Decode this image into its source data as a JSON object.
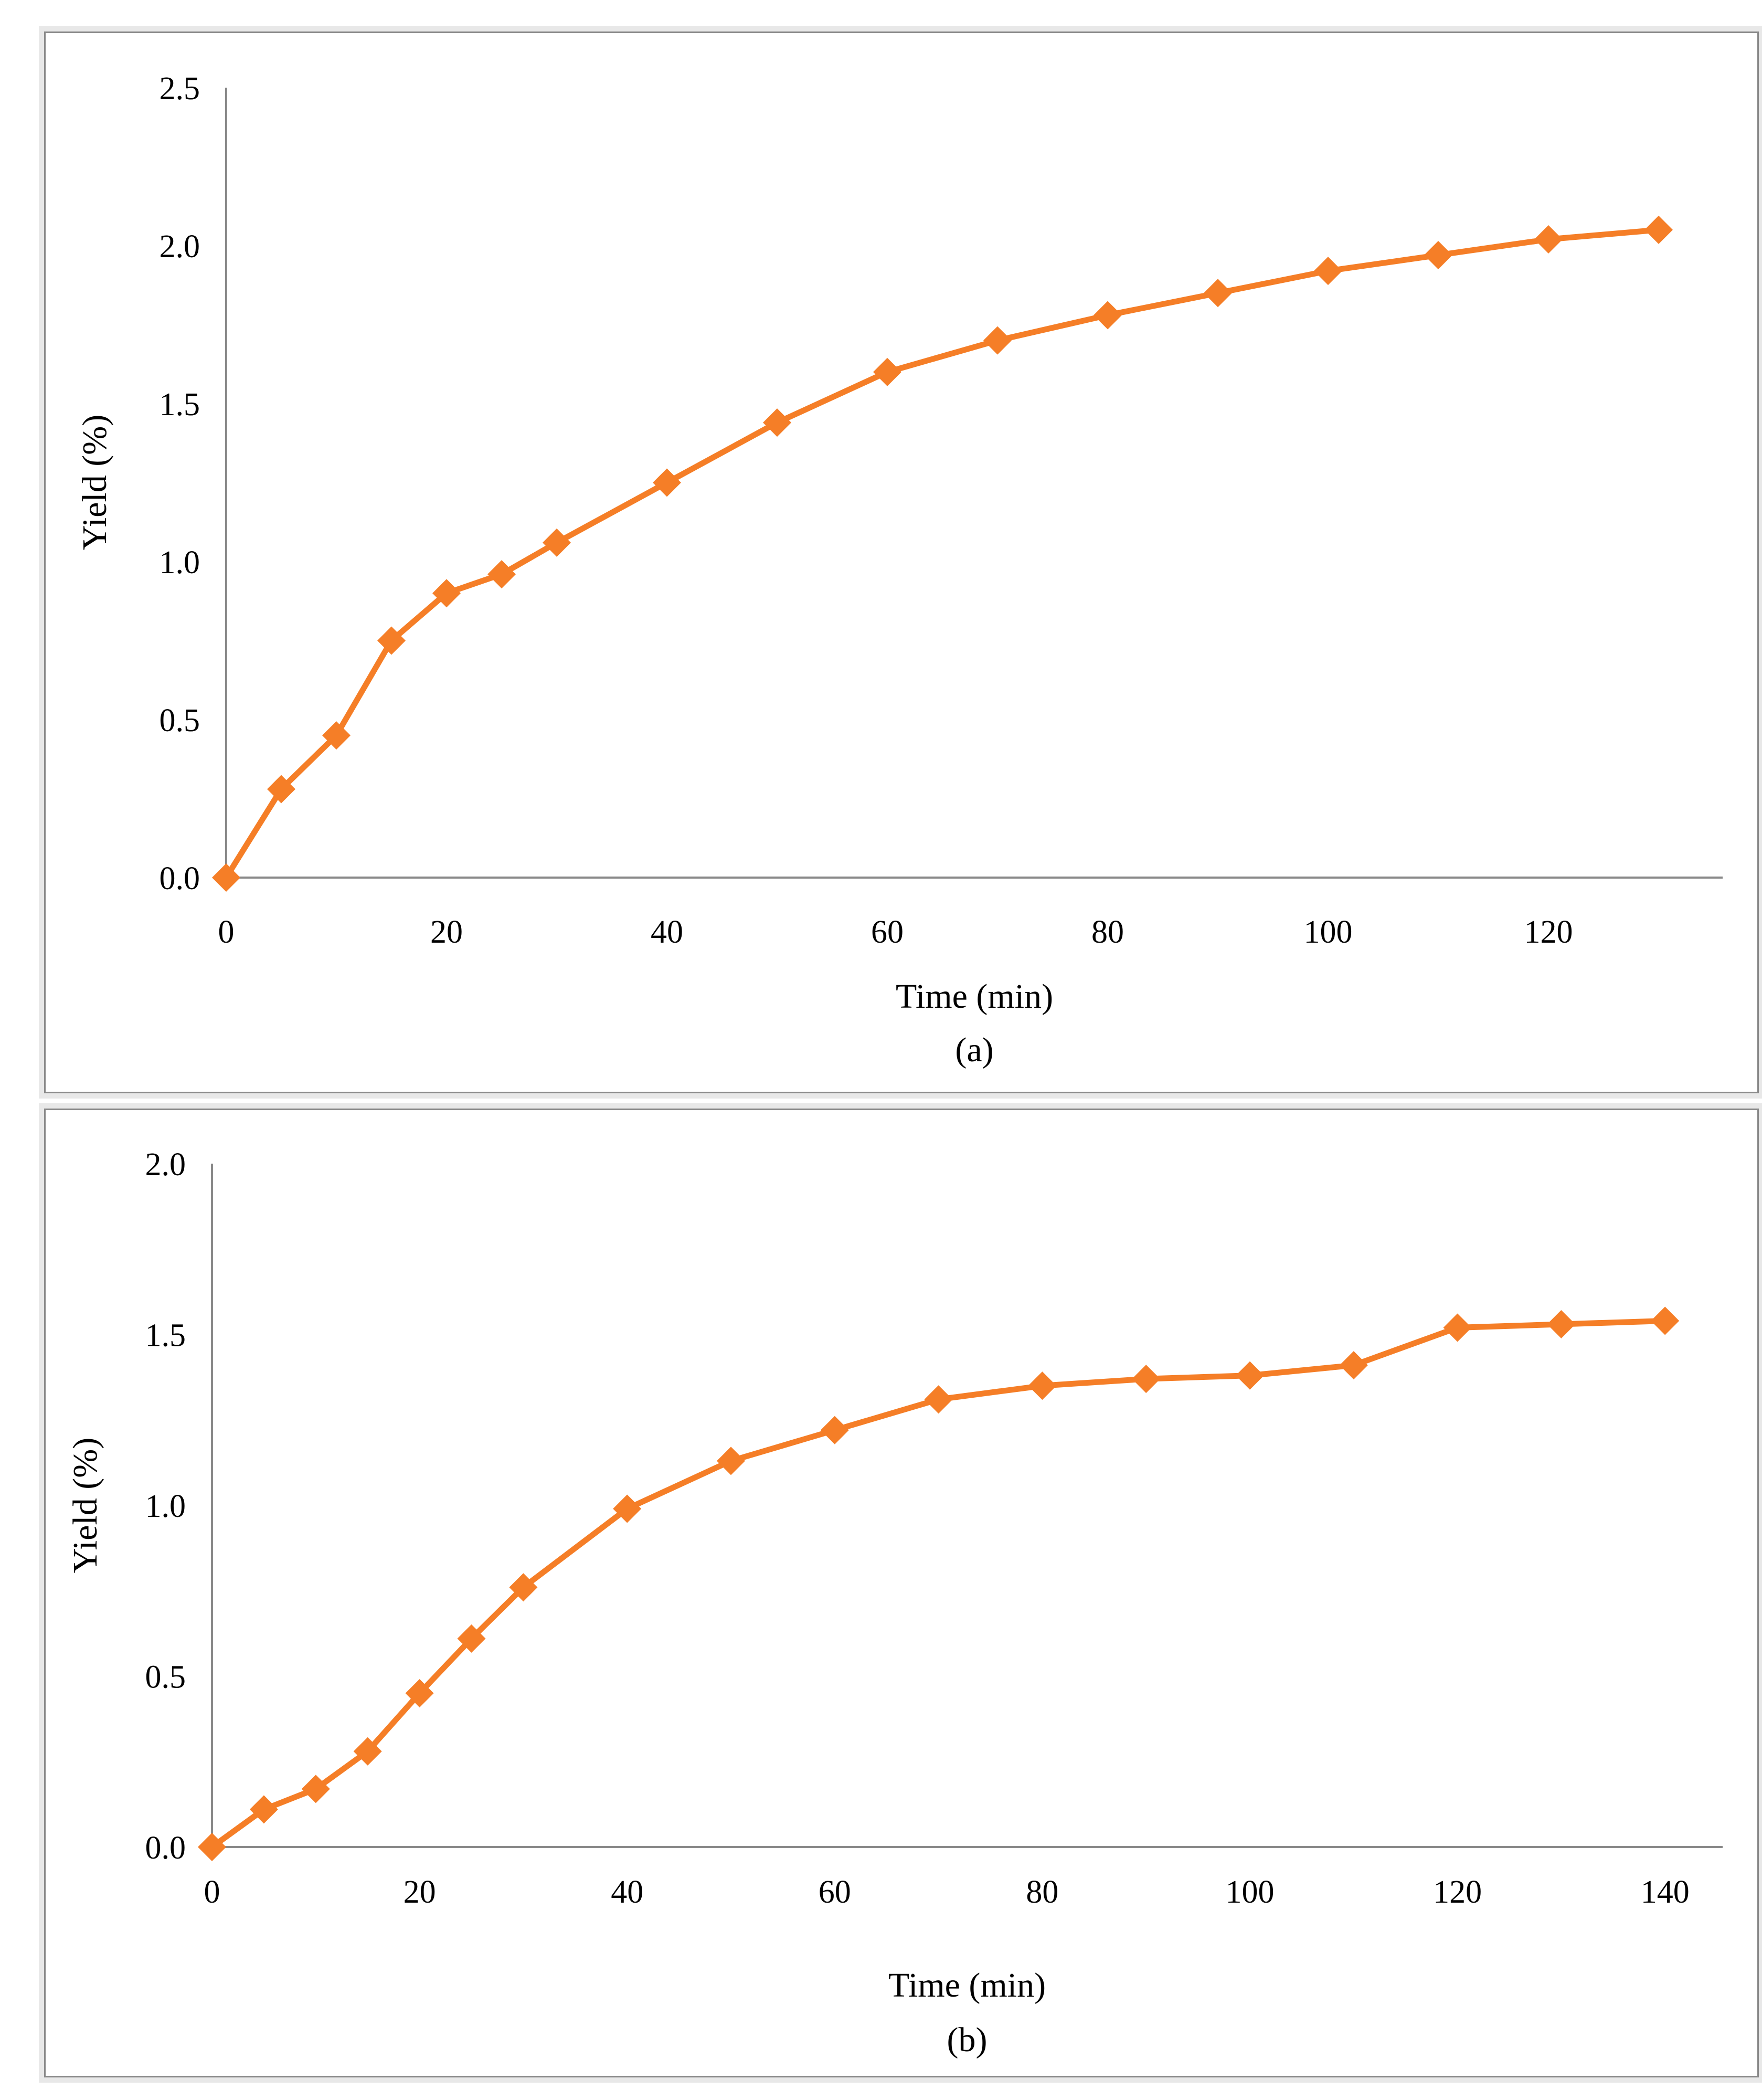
{
  "figure": {
    "panels": [
      {
        "id": "a",
        "caption": "(a)",
        "xlabel": "Time (min)",
        "ylabel": "Yield (%)",
        "x_tick_labels": [
          "0",
          "20",
          "40",
          "60",
          "80",
          "100",
          "120"
        ],
        "y_tick_labels": [
          "0.0",
          "0.5",
          "1.0",
          "1.5",
          "2.0",
          "2.5"
        ]
      },
      {
        "id": "b",
        "caption": "(b)",
        "xlabel": "Time (min)",
        "ylabel": "Yield (%)",
        "x_tick_labels": [
          "0",
          "20",
          "40",
          "60",
          "80",
          "100",
          "120",
          "140"
        ],
        "y_tick_labels": [
          "0.0",
          "0.5",
          "1.0",
          "1.5",
          "2.0"
        ]
      }
    ]
  },
  "chart_data": [
    {
      "type": "line",
      "title": "",
      "xlabel": "Time (min)",
      "ylabel": "Yield (%)",
      "series_name": "Yield",
      "marker": "diamond",
      "color": "#F57E27",
      "x": [
        0,
        5,
        10,
        15,
        20,
        25,
        30,
        40,
        50,
        60,
        70,
        80,
        90,
        100,
        110,
        120,
        130
      ],
      "y": [
        0.0,
        0.28,
        0.45,
        0.75,
        0.9,
        0.96,
        1.06,
        1.25,
        1.44,
        1.6,
        1.7,
        1.78,
        1.85,
        1.92,
        1.97,
        2.02,
        2.05
      ],
      "x_ticks": [
        0,
        20,
        40,
        60,
        80,
        100,
        120
      ],
      "y_ticks": [
        0,
        0.5,
        1.0,
        1.5,
        2.0,
        2.5
      ],
      "xlim": [
        0,
        136
      ],
      "ylim": [
        0,
        2.5
      ],
      "grid": false,
      "legend": "none"
    },
    {
      "type": "line",
      "title": "",
      "xlabel": "Time (min)",
      "ylabel": "Yield (%)",
      "series_name": "Yield",
      "marker": "diamond",
      "color": "#F57E27",
      "x": [
        0,
        5,
        10,
        15,
        20,
        25,
        30,
        40,
        50,
        60,
        70,
        80,
        90,
        100,
        110,
        120,
        130,
        140
      ],
      "y": [
        0.0,
        0.11,
        0.17,
        0.28,
        0.45,
        0.61,
        0.76,
        0.99,
        1.13,
        1.22,
        1.31,
        1.35,
        1.37,
        1.38,
        1.41,
        1.52,
        1.53,
        1.54
      ],
      "x_ticks": [
        0,
        20,
        40,
        60,
        80,
        100,
        120,
        140
      ],
      "y_ticks": [
        0,
        0.5,
        1.0,
        1.5,
        2.0
      ],
      "xlim": [
        0,
        145
      ],
      "ylim": [
        0,
        2.0
      ],
      "grid": false,
      "legend": "none"
    }
  ],
  "colors": {
    "series": "#F57E27",
    "axis_line": "#898989",
    "tick_text": "#000000",
    "panel_border": "#8A8A8A",
    "panel_halo": "#E8E8E8"
  }
}
